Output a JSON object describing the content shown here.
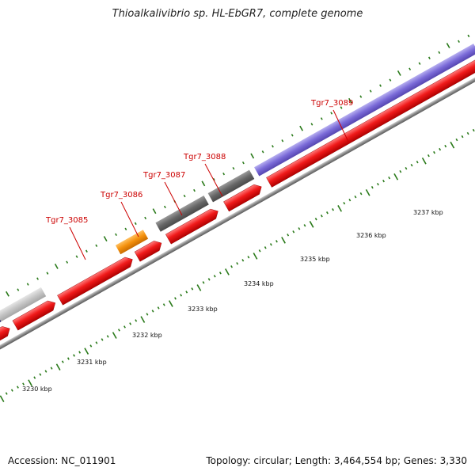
{
  "title": "Thioalkalivibrio sp. HL-EbGR7, complete genome",
  "footer": {
    "accession": "Accession: NC_011901",
    "stats": "Topology: circular; Length: 3,464,554 bp; Genes: 3,330"
  },
  "colors": {
    "cds": "#e8111c",
    "cog_purple": "#7a6ad8",
    "cog_gray": "#6a6a6a",
    "cog_light_gray": "#c8c8c8",
    "cog_orange": "#f4900c",
    "cog_pink": "#f08080",
    "cog_navy": "#3a3a8a",
    "tick": "#2a7a1a",
    "backbone": "#888888",
    "label": "#cc0000"
  },
  "scale_labels": [
    "3230 kbp",
    "3231 kbp",
    "3232 kbp",
    "3233 kbp",
    "3234 kbp",
    "3235 kbp",
    "3236 kbp",
    "3237 kbp"
  ],
  "gene_labels": [
    "Tgr7_3085",
    "Tgr7_3086",
    "Tgr7_3087",
    "Tgr7_3088",
    "Tgr7_3089"
  ]
}
